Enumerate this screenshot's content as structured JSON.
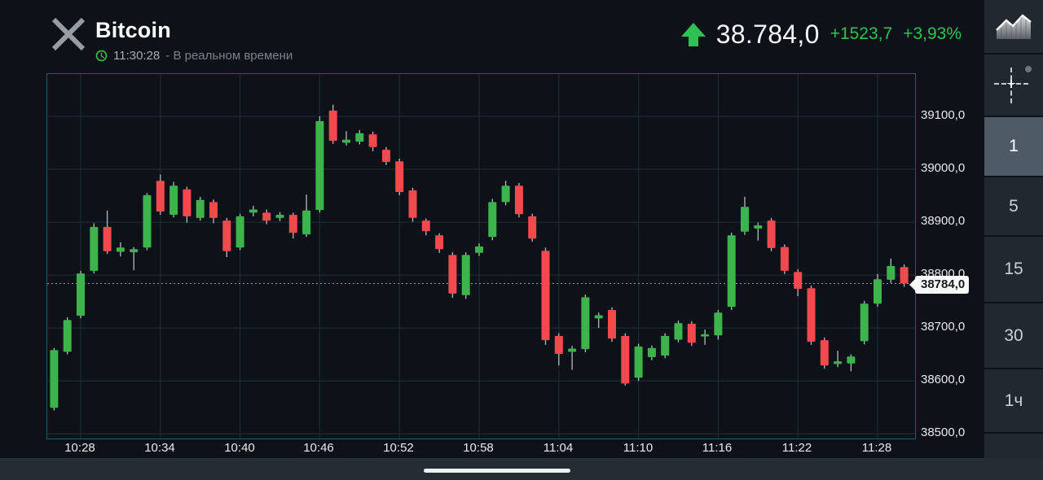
{
  "header": {
    "close_icon": "close-x-icon",
    "title": "Bitcoin",
    "clock_icon": "clock-icon",
    "time": "11:30:28",
    "realtime_label": "- В реальном времени",
    "trend_icon": "arrow-up-icon",
    "price": "38.784,0",
    "change_absolute": "+1523,7",
    "change_percent": "+3,93%"
  },
  "toolbar": {
    "chart_type_icon": "area-chart-icon",
    "crosshair_icon": "crosshair-icon",
    "timeframes": [
      {
        "label": "1",
        "selected": true
      },
      {
        "label": "5",
        "selected": false
      },
      {
        "label": "15",
        "selected": false
      },
      {
        "label": "30",
        "selected": false
      },
      {
        "label": "1ч",
        "selected": false
      }
    ]
  },
  "price_tag": {
    "label": "38784,0",
    "value": 38784
  },
  "colors": {
    "background": "#0d1219",
    "candle_up": "#3db44b",
    "candle_down": "#f1494d",
    "wick": "#b4bac0",
    "accent_green": "#2fc153",
    "grid": "#1f2e38",
    "chart_border": "#2a566e",
    "tile": "#22282f",
    "tile_selected": "#4d5965"
  },
  "chart_data": {
    "type": "candlestick",
    "symbol": "Bitcoin",
    "interval_minutes": 1,
    "x_tick_labels": [
      "10:28",
      "10:34",
      "10:40",
      "10:46",
      "10:52",
      "10:58",
      "11:04",
      "11:10",
      "11:16",
      "11:22",
      "11:28"
    ],
    "y_tick_labels": [
      "39100,0",
      "39000,0",
      "38900,0",
      "38800,0",
      "38700,0",
      "38600,0",
      "38500,0"
    ],
    "y_tick_values": [
      39100,
      39000,
      38900,
      38800,
      38700,
      38600,
      38500
    ],
    "last_price": 38784,
    "scale": {
      "price_at_plot_top": 39180,
      "price_at_plot_bottom": 38491
    },
    "grid": true,
    "candles_columns": [
      "time",
      "open",
      "high",
      "low",
      "close"
    ],
    "candles": [
      [
        "10:26",
        38549,
        38662,
        38544,
        38658
      ],
      [
        "10:27",
        38655,
        38720,
        38650,
        38715
      ],
      [
        "10:28",
        38723,
        38808,
        38718,
        38803
      ],
      [
        "10:29",
        38808,
        38898,
        38803,
        38891
      ],
      [
        "10:30",
        38891,
        38922,
        38840,
        38845
      ],
      [
        "10:31",
        38844,
        38862,
        38835,
        38852
      ],
      [
        "10:32",
        38843,
        38853,
        38809,
        38849
      ],
      [
        "10:33",
        38852,
        38955,
        38847,
        38951
      ],
      [
        "10:34",
        38978,
        38990,
        38914,
        38920
      ],
      [
        "10:35",
        38914,
        38976,
        38909,
        38969
      ],
      [
        "10:36",
        38962,
        38967,
        38899,
        38911
      ],
      [
        "10:37",
        38908,
        38948,
        38903,
        38942
      ],
      [
        "10:38",
        38938,
        38943,
        38898,
        38908
      ],
      [
        "10:39",
        38903,
        38908,
        38834,
        38845
      ],
      [
        "10:40",
        38852,
        38916,
        38847,
        38911
      ],
      [
        "10:41",
        38918,
        38931,
        38911,
        38924
      ],
      [
        "10:42",
        38918,
        38924,
        38896,
        38903
      ],
      [
        "10:43",
        38908,
        38919,
        38902,
        38914
      ],
      [
        "10:44",
        38914,
        38918,
        38869,
        38880
      ],
      [
        "10:45",
        38877,
        38952,
        38872,
        38922
      ],
      [
        "10:46",
        38923,
        39100,
        38918,
        39091
      ],
      [
        "10:47",
        39111,
        39122,
        39048,
        39054
      ],
      [
        "10:48",
        39050,
        39072,
        39045,
        39056
      ],
      [
        "10:49",
        39052,
        39074,
        39047,
        39068
      ],
      [
        "10:50",
        39066,
        39071,
        39034,
        39042
      ],
      [
        "10:51",
        39037,
        39042,
        39008,
        39014
      ],
      [
        "10:52",
        39015,
        39020,
        38951,
        38957
      ],
      [
        "10:53",
        38960,
        38965,
        38901,
        38908
      ],
      [
        "10:54",
        38903,
        38907,
        38875,
        38883
      ],
      [
        "10:55",
        38875,
        38879,
        38842,
        38849
      ],
      [
        "10:56",
        38838,
        38843,
        38757,
        38765
      ],
      [
        "10:57",
        38762,
        38843,
        38755,
        38838
      ],
      [
        "10:58",
        38842,
        38860,
        38836,
        38854
      ],
      [
        "10:59",
        38872,
        38944,
        38866,
        38938
      ],
      [
        "11:00",
        38938,
        38978,
        38932,
        38969
      ],
      [
        "11:01",
        38969,
        38974,
        38909,
        38915
      ],
      [
        "11:02",
        38911,
        38916,
        38863,
        38869
      ],
      [
        "11:03",
        38846,
        38852,
        38668,
        38677
      ],
      [
        "11:04",
        38685,
        38690,
        38629,
        38651
      ],
      [
        "11:05",
        38655,
        38666,
        38621,
        38661
      ],
      [
        "11:06",
        38660,
        38763,
        38654,
        38758
      ],
      [
        "11:07",
        38718,
        38729,
        38700,
        38724
      ],
      [
        "11:08",
        38734,
        38739,
        38674,
        38680
      ],
      [
        "11:09",
        38685,
        38690,
        38591,
        38595
      ],
      [
        "11:10",
        38606,
        38670,
        38600,
        38665
      ],
      [
        "11:11",
        38645,
        38667,
        38639,
        38662
      ],
      [
        "11:12",
        38648,
        38690,
        38643,
        38685
      ],
      [
        "11:13",
        38678,
        38714,
        38673,
        38709
      ],
      [
        "11:14",
        38708,
        38713,
        38666,
        38672
      ],
      [
        "11:15",
        38684,
        38697,
        38668,
        38688
      ],
      [
        "11:16",
        38686,
        38734,
        38678,
        38729
      ],
      [
        "11:17",
        38740,
        38880,
        38734,
        38875
      ],
      [
        "11:18",
        38882,
        38948,
        38876,
        38929
      ],
      [
        "11:19",
        38888,
        38899,
        38865,
        38894
      ],
      [
        "11:20",
        38903,
        38908,
        38845,
        38851
      ],
      [
        "11:21",
        38853,
        38858,
        38802,
        38808
      ],
      [
        "11:22",
        38806,
        38811,
        38760,
        38774
      ],
      [
        "11:23",
        38775,
        38780,
        38668,
        38674
      ],
      [
        "11:24",
        38677,
        38682,
        38623,
        38629
      ],
      [
        "11:25",
        38632,
        38657,
        38626,
        38637
      ],
      [
        "11:26",
        38633,
        38650,
        38618,
        38646
      ],
      [
        "11:27",
        38675,
        38751,
        38669,
        38746
      ],
      [
        "11:28",
        38746,
        38802,
        38740,
        38792
      ],
      [
        "11:29",
        38791,
        38831,
        38785,
        38817
      ],
      [
        "11:30",
        38815,
        38820,
        38778,
        38784
      ]
    ]
  }
}
